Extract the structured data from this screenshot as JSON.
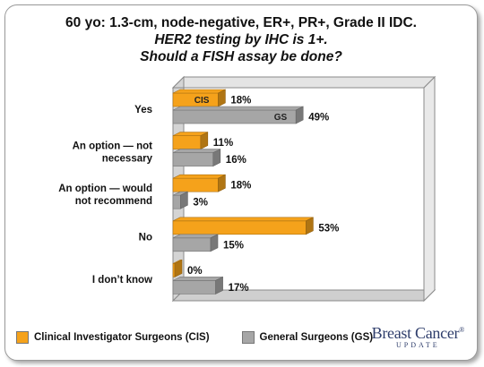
{
  "chart_data": {
    "type": "bar",
    "orientation": "horizontal",
    "title_lines": [
      "60 yo: 1.3-cm, node-negative, ER+, PR+, Grade II IDC.",
      "HER2 testing by IHC is 1+.",
      "Should a FISH assay be done?"
    ],
    "categories": [
      [
        "Yes"
      ],
      [
        "An option — not",
        "necessary"
      ],
      [
        "An option — would",
        "not recommend"
      ],
      [
        "No"
      ],
      [
        "I don’t know"
      ]
    ],
    "series": [
      {
        "name": "Clinical Investigator Surgeons (CIS)",
        "short": "CIS",
        "color": "#f5a21b",
        "values": [
          18,
          11,
          18,
          53,
          0
        ]
      },
      {
        "name": "General Surgeons (GS)",
        "short": "GS",
        "color": "#a6a6a6",
        "values": [
          49,
          16,
          3,
          15,
          17
        ]
      }
    ],
    "value_suffix": "%",
    "xlim": [
      0,
      100
    ],
    "grid": false,
    "legend": "bottom-left"
  },
  "logo": {
    "main": "Breast Cancer",
    "mark": "®",
    "sub": "UPDATE"
  }
}
